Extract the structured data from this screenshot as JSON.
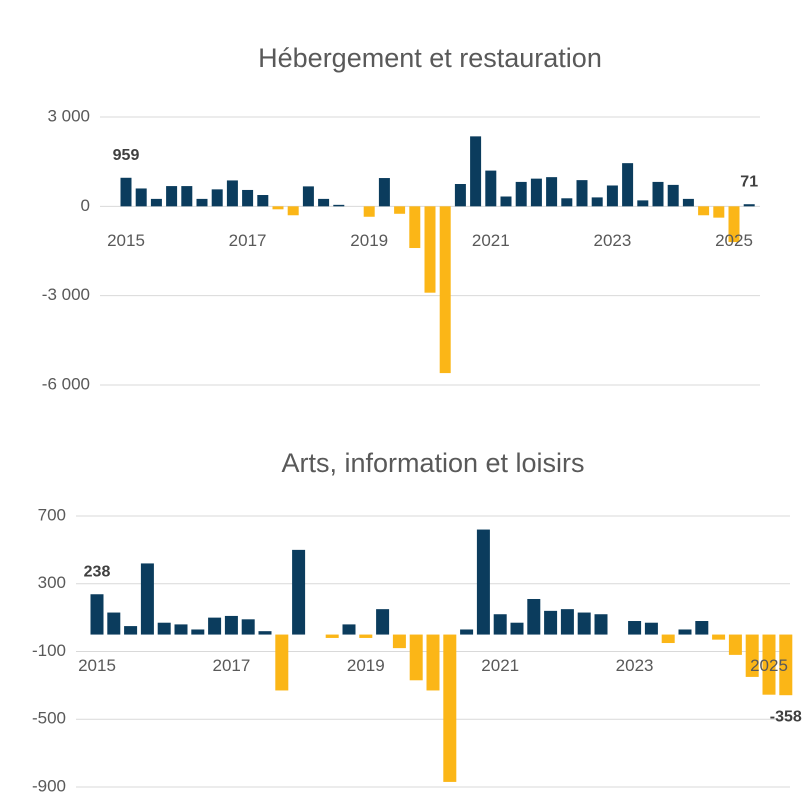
{
  "chart_data": [
    {
      "type": "bar",
      "title": "Hébergement et restauration",
      "categories": [
        "2015",
        null,
        null,
        null,
        null,
        null,
        null,
        null,
        "2017",
        null,
        null,
        null,
        null,
        null,
        null,
        null,
        "2019",
        null,
        null,
        null,
        null,
        null,
        null,
        null,
        "2021",
        null,
        null,
        null,
        null,
        null,
        null,
        null,
        "2023",
        null,
        null,
        null,
        null,
        null,
        null,
        null,
        "2025",
        null
      ],
      "values": [
        959,
        600,
        250,
        680,
        680,
        250,
        570,
        870,
        550,
        380,
        -100,
        -300,
        670,
        250,
        50,
        0,
        -350,
        950,
        -250,
        -1400,
        -2900,
        -5600,
        750,
        2350,
        1200,
        330,
        820,
        930,
        980,
        270,
        880,
        300,
        700,
        1450,
        200,
        820,
        720,
        250,
        -300,
        -380,
        -1200,
        71
      ],
      "color_positive": "#0b3c5d",
      "color_negative": "#fbb617",
      "ylim": [
        -6000,
        3000
      ],
      "yticks": [
        {
          "value": -6000,
          "label": "-6 000"
        },
        {
          "value": -3000,
          "label": "-3 000"
        },
        0,
        {
          "value": 3000,
          "label": "3 000"
        }
      ],
      "grid": true
    },
    {
      "type": "bar",
      "title": "Arts, information et loisirs",
      "categories": [
        "2015",
        null,
        null,
        null,
        null,
        null,
        null,
        null,
        "2017",
        null,
        null,
        null,
        null,
        null,
        null,
        null,
        "2019",
        null,
        null,
        null,
        null,
        null,
        null,
        null,
        "2021",
        null,
        null,
        null,
        null,
        null,
        null,
        null,
        "2023",
        null,
        null,
        null,
        null,
        null,
        null,
        null,
        "2025",
        null
      ],
      "values": [
        238,
        130,
        50,
        420,
        70,
        60,
        30,
        100,
        110,
        90,
        20,
        -330,
        500,
        0,
        -20,
        60,
        -20,
        150,
        -80,
        -270,
        -330,
        -870,
        30,
        620,
        120,
        70,
        210,
        140,
        150,
        130,
        120,
        0,
        80,
        70,
        -50,
        30,
        80,
        -30,
        -120,
        -250,
        -355,
        -358
      ],
      "color_positive": "#0b3c5d",
      "color_negative": "#fbb617",
      "ylim": [
        -900,
        700
      ],
      "yticks": [
        -900,
        -500,
        -100,
        300,
        700
      ],
      "grid": true
    }
  ]
}
